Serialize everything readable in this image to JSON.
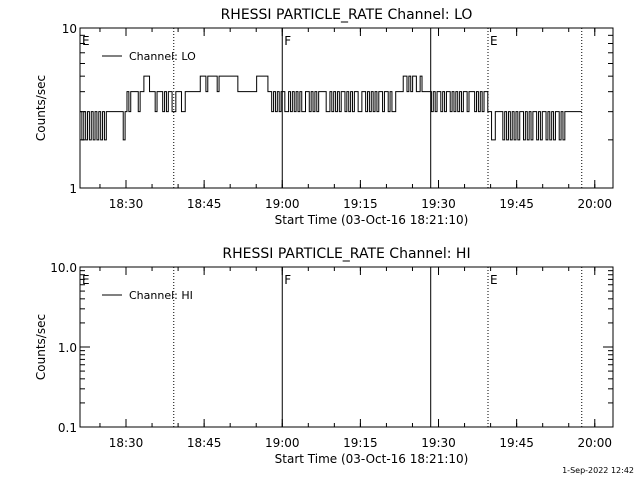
{
  "chart_data": [
    {
      "type": "line",
      "title": "RHESSI PARTICLE_RATE Channel: LO",
      "xlabel": "Start Time (03-Oct-16 18:21:10)",
      "ylabel": "Counts/sec",
      "yscale": "log",
      "ylim": [
        1,
        10
      ],
      "xlim": [
        "18:21:10",
        "20:03:30"
      ],
      "x_ticks": [
        "18:30",
        "18:45",
        "19:00",
        "19:15",
        "19:30",
        "19:45",
        "20:00"
      ],
      "x_tick_minutes": [
        510,
        525,
        540,
        555,
        570,
        585,
        600
      ],
      "y_ticks": [
        "1",
        "10"
      ],
      "y_tick_values": [
        1,
        10
      ],
      "legend": {
        "placement": "top-left",
        "entries": [
          "Channel: LO"
        ]
      },
      "markers": [
        {
          "label": "E",
          "time": "18:21:10",
          "style": "dotted"
        },
        {
          "label": "",
          "time": "18:39:10",
          "style": "dotted"
        },
        {
          "label": "F",
          "time": "19:00:00",
          "style": "solid"
        },
        {
          "label": "",
          "time": "19:28:30",
          "style": "solid"
        },
        {
          "label": "E",
          "time": "19:39:30",
          "style": "dotted"
        },
        {
          "label": "",
          "time": "19:57:30",
          "style": "dotted"
        }
      ],
      "series": [
        {
          "name": "Channel: LO",
          "x_start_min": 1102.0,
          "x_step_min": 0.2,
          "note_units": "minutes after 00:00",
          "values": []
        }
      ]
    },
    {
      "type": "line",
      "title": "RHESSI PARTICLE_RATE Channel: HI",
      "xlabel": "Start Time (03-Oct-16 18:21:10)",
      "ylabel": "Counts/sec",
      "yscale": "log",
      "ylim": [
        0.1,
        10
      ],
      "x_ticks": [
        "18:30",
        "18:45",
        "19:00",
        "19:15",
        "19:30",
        "19:45",
        "20:00"
      ],
      "y_ticks": [
        "0.1",
        "1.0",
        "10.0"
      ],
      "y_tick_values": [
        0.1,
        1.0,
        10.0
      ],
      "legend": {
        "placement": "top-left",
        "entries": [
          "Channel: HI"
        ]
      },
      "markers": [
        {
          "label": "E",
          "time": "18:21:10",
          "style": "dotted"
        },
        {
          "label": "",
          "time": "18:39:10",
          "style": "dotted"
        },
        {
          "label": "F",
          "time": "19:00:00",
          "style": "solid"
        },
        {
          "label": "",
          "time": "19:28:30",
          "style": "solid"
        },
        {
          "label": "E",
          "time": "19:39:30",
          "style": "dotted"
        },
        {
          "label": "",
          "time": "19:57:30",
          "style": "dotted"
        }
      ],
      "series": [
        {
          "name": "Channel: HI",
          "values": []
        }
      ]
    }
  ],
  "footer": {
    "timestamp": "1-Sep-2022 12:42"
  }
}
